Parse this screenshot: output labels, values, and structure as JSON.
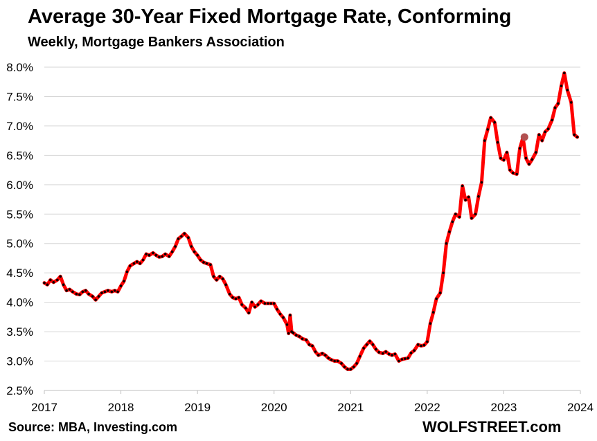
{
  "chart_data": {
    "type": "line",
    "title": "Average 30-Year Fixed Mortgage Rate, Conforming",
    "subtitle": "Weekly, Mortgage Bankers Association",
    "source": "Source: MBA, Investing.com",
    "brand": "WOLFSTREET.com",
    "xlabel": "",
    "ylabel": "",
    "xlim": [
      2017,
      2024
    ],
    "ylim": [
      2.5,
      8.0
    ],
    "x_ticks": [
      "2017",
      "2018",
      "2019",
      "2020",
      "2021",
      "2022",
      "2023",
      "2024"
    ],
    "y_ticks": [
      "2.5%",
      "3.0%",
      "3.5%",
      "4.0%",
      "4.5%",
      "5.0%",
      "5.5%",
      "6.0%",
      "6.5%",
      "7.0%",
      "7.5%",
      "8.0%"
    ],
    "grid": "horizontal",
    "line_color": "#ff0000",
    "marker_color": "#000000",
    "highlight_color": "#b25050",
    "series": [
      {
        "x": [
          2017.0,
          2017.04,
          2017.08,
          2017.12,
          2017.17,
          2017.21,
          2017.25,
          2017.29,
          2017.33,
          2017.37,
          2017.42,
          2017.46,
          2017.5,
          2017.54,
          2017.58,
          2017.63,
          2017.67,
          2017.71,
          2017.75,
          2017.79,
          2017.83,
          2017.88,
          2017.92,
          2017.96,
          2018.0,
          2018.04,
          2018.08,
          2018.12,
          2018.17,
          2018.21,
          2018.25,
          2018.29,
          2018.33,
          2018.37,
          2018.42,
          2018.46,
          2018.5,
          2018.54,
          2018.58,
          2018.63,
          2018.67,
          2018.71,
          2018.75,
          2018.79,
          2018.83,
          2018.88,
          2018.92,
          2018.96,
          2019.0,
          2019.04,
          2019.08,
          2019.12,
          2019.17,
          2019.21,
          2019.25,
          2019.29,
          2019.33,
          2019.37,
          2019.42,
          2019.46,
          2019.5,
          2019.54,
          2019.58,
          2019.63,
          2019.67,
          2019.71,
          2019.75,
          2019.79,
          2019.83,
          2019.88,
          2019.92,
          2019.96,
          2020.0,
          2020.04,
          2020.08,
          2020.12,
          2020.17,
          2020.19,
          2020.21,
          2020.23,
          2020.25,
          2020.29,
          2020.33,
          2020.37,
          2020.42,
          2020.46,
          2020.5,
          2020.54,
          2020.58,
          2020.63,
          2020.67,
          2020.71,
          2020.75,
          2020.79,
          2020.83,
          2020.88,
          2020.92,
          2020.96,
          2021.0,
          2021.04,
          2021.08,
          2021.12,
          2021.17,
          2021.21,
          2021.25,
          2021.29,
          2021.33,
          2021.37,
          2021.42,
          2021.46,
          2021.5,
          2021.54,
          2021.58,
          2021.63,
          2021.67,
          2021.71,
          2021.75,
          2021.79,
          2021.83,
          2021.88,
          2021.92,
          2021.96,
          2022.0,
          2022.04,
          2022.08,
          2022.12,
          2022.17,
          2022.21,
          2022.25,
          2022.29,
          2022.33,
          2022.37,
          2022.42,
          2022.46,
          2022.5,
          2022.54,
          2022.58,
          2022.63,
          2022.67,
          2022.71,
          2022.75,
          2022.79,
          2022.83,
          2022.88,
          2022.92,
          2022.96,
          2023.0,
          2023.04,
          2023.08,
          2023.12,
          2023.17,
          2023.21,
          2023.25,
          2023.29,
          2023.33,
          2023.37,
          2023.42,
          2023.46,
          2023.5,
          2023.54,
          2023.58,
          2023.63,
          2023.67,
          2023.71,
          2023.75,
          2023.79,
          2023.83,
          2023.88,
          2023.92,
          2023.96
        ],
        "y": [
          4.33,
          4.3,
          4.38,
          4.34,
          4.38,
          4.44,
          4.3,
          4.2,
          4.22,
          4.18,
          4.14,
          4.13,
          4.18,
          4.2,
          4.14,
          4.1,
          4.04,
          4.1,
          4.16,
          4.18,
          4.2,
          4.18,
          4.2,
          4.18,
          4.28,
          4.36,
          4.52,
          4.62,
          4.66,
          4.69,
          4.66,
          4.72,
          4.82,
          4.8,
          4.84,
          4.8,
          4.77,
          4.78,
          4.82,
          4.78,
          4.86,
          4.95,
          5.08,
          5.12,
          5.17,
          5.1,
          4.95,
          4.86,
          4.8,
          4.72,
          4.68,
          4.66,
          4.64,
          4.44,
          4.38,
          4.44,
          4.4,
          4.3,
          4.14,
          4.08,
          4.06,
          4.08,
          3.96,
          3.9,
          3.82,
          4.0,
          3.92,
          3.96,
          4.02,
          3.98,
          3.98,
          3.98,
          3.98,
          3.88,
          3.8,
          3.74,
          3.62,
          3.47,
          3.78,
          3.5,
          3.48,
          3.44,
          3.42,
          3.38,
          3.36,
          3.28,
          3.26,
          3.16,
          3.1,
          3.13,
          3.1,
          3.05,
          3.02,
          3.0,
          3.0,
          2.96,
          2.9,
          2.86,
          2.86,
          2.9,
          2.96,
          3.08,
          3.22,
          3.28,
          3.34,
          3.28,
          3.2,
          3.15,
          3.13,
          3.16,
          3.12,
          3.1,
          3.12,
          3.0,
          3.03,
          3.04,
          3.05,
          3.14,
          3.18,
          3.28,
          3.26,
          3.27,
          3.33,
          3.64,
          3.83,
          4.06,
          4.16,
          4.5,
          5.0,
          5.2,
          5.37,
          5.5,
          5.45,
          5.98,
          5.74,
          5.79,
          5.43,
          5.5,
          5.8,
          6.04,
          6.75,
          6.94,
          7.14,
          7.06,
          6.72,
          6.45,
          6.42,
          6.55,
          6.25,
          6.2,
          6.18,
          6.62,
          6.8,
          6.45,
          6.35,
          6.43,
          6.55,
          6.85,
          6.75,
          6.9,
          6.95,
          7.1,
          7.31,
          7.38,
          7.68,
          7.9,
          7.61,
          7.4,
          6.85,
          6.81
        ]
      }
    ],
    "highlight_point": {
      "x": 2023.27,
      "y": 6.81
    }
  }
}
